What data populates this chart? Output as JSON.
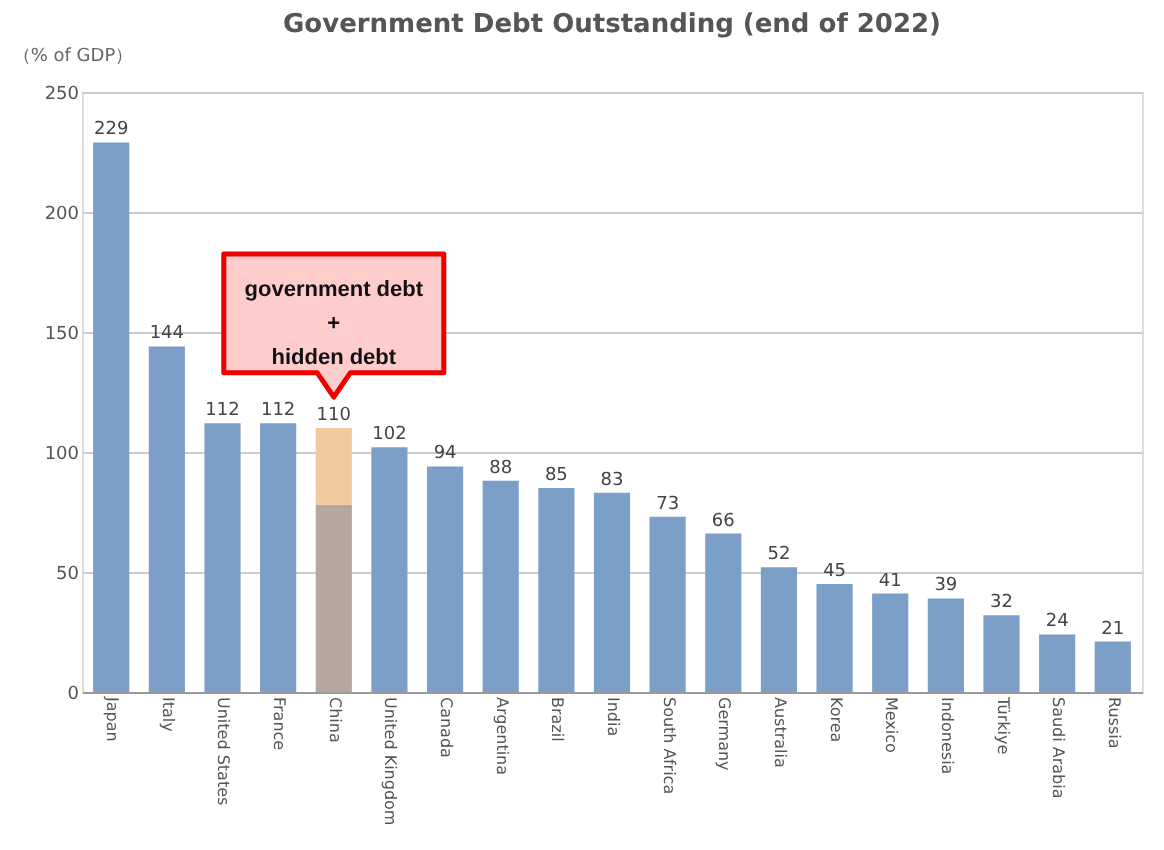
{
  "chart_data": {
    "type": "bar",
    "title": "Government Debt Outstanding (end of 2022)",
    "ylabel": "（% of GDP）",
    "categories": [
      "Japan",
      "Italy",
      "United States",
      "France",
      "China",
      "United Kingdom",
      "Canada",
      "Argentina",
      "Brazil",
      "India",
      "South Africa",
      "Germany",
      "Australia",
      "Korea",
      "Mexico",
      "Indonesia",
      "Türkiye",
      "Saudi Arabia",
      "Russia"
    ],
    "stacked": true,
    "series": [
      {
        "colors": [
          "#7b9fc7",
          "#7b9fc7",
          "#7b9fc7",
          "#7b9fc7",
          "#b5a6a0",
          "#7b9fc7",
          "#7b9fc7",
          "#7b9fc7",
          "#7b9fc7",
          "#7b9fc7",
          "#7b9fc7",
          "#7b9fc7",
          "#7b9fc7",
          "#7b9fc7",
          "#7b9fc7",
          "#7b9fc7",
          "#7b9fc7",
          "#7b9fc7",
          "#7b9fc7"
        ],
        "values": [
          229,
          144,
          112,
          112,
          78,
          102,
          94,
          88,
          85,
          83,
          73,
          66,
          52,
          45,
          41,
          39,
          32,
          24,
          21
        ]
      },
      {
        "color": "#f0c8a0",
        "values": [
          null,
          null,
          null,
          null,
          32,
          null,
          null,
          null,
          null,
          null,
          null,
          null,
          null,
          null,
          null,
          null,
          null,
          null,
          null
        ]
      }
    ],
    "totals": [
      "229",
      "144",
      "112",
      "112",
      "110",
      "102",
      "94",
      "88",
      "85",
      "83",
      "73",
      "66",
      "52",
      "45",
      "41",
      "39",
      "32",
      "24",
      "21"
    ],
    "annotations": [
      {
        "text": "government debt\n+\nhidden debt",
        "x": "China",
        "y": 110
      }
    ],
    "ylim": [
      0,
      250
    ],
    "yticks": [
      0,
      50,
      100,
      150,
      200,
      250
    ],
    "grid": "y"
  }
}
